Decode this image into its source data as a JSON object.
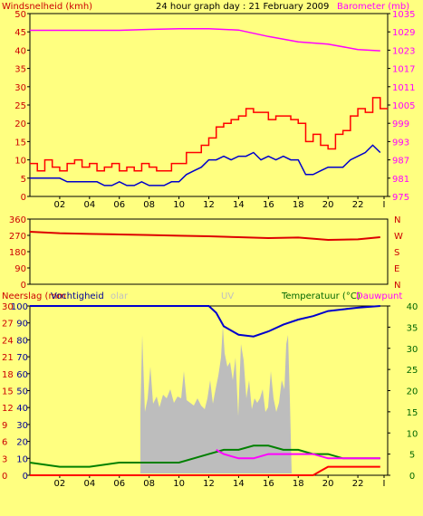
{
  "chart_data": [
    {
      "type": "line",
      "title": "24 hour graph day : 21 February 2009",
      "left_axis_label": "Windsnelheid (kmh)",
      "right_axis_label": "Barometer (mb)",
      "x_ticks": [
        "02",
        "04",
        "06",
        "08",
        "10",
        "12",
        "14",
        "16",
        "18",
        "20",
        "22",
        "I"
      ],
      "y_left_ticks": [
        "0",
        "5",
        "10",
        "15",
        "20",
        "25",
        "30",
        "35",
        "40",
        "45",
        "50"
      ],
      "y_left_range": [
        0,
        50
      ],
      "y_right_ticks": [
        "975",
        "981",
        "987",
        "993",
        "999",
        "1005",
        "1011",
        "1017",
        "1023",
        "1029",
        "1035"
      ],
      "y_right_range": [
        975,
        1035
      ],
      "series": [
        {
          "color": "#ff00ff",
          "axis": "right",
          "x": [
            0,
            2,
            4,
            6,
            8,
            10,
            12,
            14,
            16,
            18,
            20,
            22,
            23.5
          ],
          "values": [
            1029.5,
            1029.5,
            1029.5,
            1029.5,
            1029.8,
            1030,
            1030,
            1029.6,
            1027.5,
            1025.7,
            1025,
            1023.2,
            1022.8
          ]
        },
        {
          "color": "#ff0000",
          "axis": "left",
          "x": [
            0,
            0.5,
            1,
            1.5,
            2,
            2.5,
            3,
            3.5,
            4,
            4.5,
            5,
            5.5,
            6,
            6.5,
            7,
            7.5,
            8,
            8.5,
            9,
            9.5,
            10,
            10.5,
            11,
            11.5,
            12,
            12.5,
            13,
            13.5,
            14,
            14.5,
            15,
            15.5,
            16,
            16.5,
            17,
            17.5,
            18,
            18.5,
            19,
            19.5,
            20,
            20.5,
            21,
            21.5,
            22,
            22.5,
            23,
            23.5
          ],
          "values": [
            9,
            7,
            10,
            8,
            7,
            9,
            10,
            8,
            9,
            7,
            8,
            9,
            7,
            8,
            7,
            9,
            8,
            7,
            7,
            9,
            9,
            12,
            12,
            14,
            16,
            19,
            20,
            21,
            22,
            24,
            23,
            23,
            21,
            22,
            22,
            21,
            20,
            15,
            17,
            14,
            13,
            17,
            18,
            22,
            24,
            23,
            27,
            24
          ]
        },
        {
          "color": "#0000cc",
          "axis": "left",
          "x": [
            0,
            0.5,
            1,
            1.5,
            2,
            2.5,
            3,
            3.5,
            4,
            4.5,
            5,
            5.5,
            6,
            6.5,
            7,
            7.5,
            8,
            8.5,
            9,
            9.5,
            10,
            10.5,
            11,
            11.5,
            12,
            12.5,
            13,
            13.5,
            14,
            14.5,
            15,
            15.5,
            16,
            16.5,
            17,
            17.5,
            18,
            18.5,
            19,
            19.5,
            20,
            20.5,
            21,
            21.5,
            22,
            22.5,
            23,
            23.5
          ],
          "values": [
            5,
            5,
            5,
            5,
            5,
            4,
            4,
            4,
            4,
            4,
            3,
            3,
            4,
            3,
            3,
            4,
            3,
            3,
            3,
            4,
            4,
            6,
            7,
            8,
            10,
            10,
            11,
            10,
            11,
            11,
            12,
            10,
            11,
            10,
            11,
            10,
            10,
            6,
            6,
            7,
            8,
            8,
            8,
            10,
            11,
            12,
            14,
            12
          ]
        }
      ]
    },
    {
      "type": "line",
      "left_ticks": [
        "360",
        "270",
        "180",
        "90",
        "0"
      ],
      "right_ticks": [
        "N",
        "W",
        "S",
        "E",
        "N"
      ],
      "y_range": [
        0,
        360
      ],
      "series": [
        {
          "color": "#dd0000",
          "x": [
            0,
            2,
            4,
            6,
            8,
            10,
            12,
            14,
            16,
            18,
            20,
            22,
            23.5
          ],
          "values": [
            290,
            282,
            278,
            275,
            272,
            268,
            265,
            260,
            255,
            258,
            245,
            248,
            260
          ]
        }
      ]
    },
    {
      "type": "line",
      "left_label_rain": "Neerslag (mm",
      "left_label_humidity": "Vochtigheid",
      "left_label_solar": "olar",
      "center_label_uv": "UV",
      "right_label_temp": "Temperatuur (°C)",
      "right_label_dew": "Dauwpunt",
      "x_ticks": [
        "02",
        "04",
        "06",
        "08",
        "10",
        "12",
        "14",
        "16",
        "18",
        "20",
        "22",
        "I"
      ],
      "y_left_rain_ticks": [
        "0",
        "3",
        "6",
        "9",
        "12",
        "15",
        "18",
        "21",
        "24",
        "27",
        "30"
      ],
      "y_left_humidity_ticks": [
        "0",
        "10",
        "20",
        "30",
        "40",
        "50",
        "60",
        "70",
        "80",
        "90",
        "100"
      ],
      "y_right_ticks": [
        "0",
        "5",
        "10",
        "15",
        "20",
        "25",
        "30",
        "35",
        "40"
      ],
      "y_right_range": [
        0,
        40
      ],
      "series": [
        {
          "name": "Vochtigheid",
          "color": "#0000cc",
          "axis": "humidity",
          "x": [
            0,
            2,
            4,
            6,
            8,
            10,
            12,
            12.5,
            13,
            14,
            15,
            16,
            17,
            18,
            19,
            20,
            21,
            22,
            23.5
          ],
          "values": [
            100,
            100,
            100,
            100,
            100,
            100,
            100,
            96,
            88,
            83,
            82,
            85,
            89,
            92,
            94,
            97,
            98,
            99,
            100
          ]
        },
        {
          "name": "Temperatuur",
          "color": "#008000",
          "axis": "right",
          "x": [
            0,
            2,
            4,
            6,
            8,
            10,
            12,
            13,
            14,
            15,
            16,
            17,
            18,
            19,
            20,
            21,
            22,
            23.5
          ],
          "values": [
            3,
            2,
            2,
            3,
            3,
            3,
            5,
            6,
            6,
            7,
            7,
            6,
            6,
            5,
            5,
            4,
            4,
            4
          ]
        },
        {
          "name": "Dauwpunt",
          "color": "#ff00ff",
          "axis": "right",
          "x": [
            12.5,
            13,
            14,
            15,
            16,
            17,
            18,
            19,
            20,
            21,
            22,
            23.5
          ],
          "values": [
            6,
            5,
            4,
            4,
            5,
            5,
            5,
            5,
            4,
            4,
            4,
            4
          ]
        },
        {
          "name": "Neerslag",
          "color": "#ff0000",
          "axis": "right",
          "x": [
            0,
            8,
            10,
            12,
            14,
            16,
            18,
            19,
            19.5,
            20,
            21,
            22,
            23.5
          ],
          "values": [
            0,
            0,
            0,
            0,
            0,
            0,
            0,
            0,
            1,
            2,
            2,
            2,
            2
          ]
        }
      ]
    }
  ]
}
